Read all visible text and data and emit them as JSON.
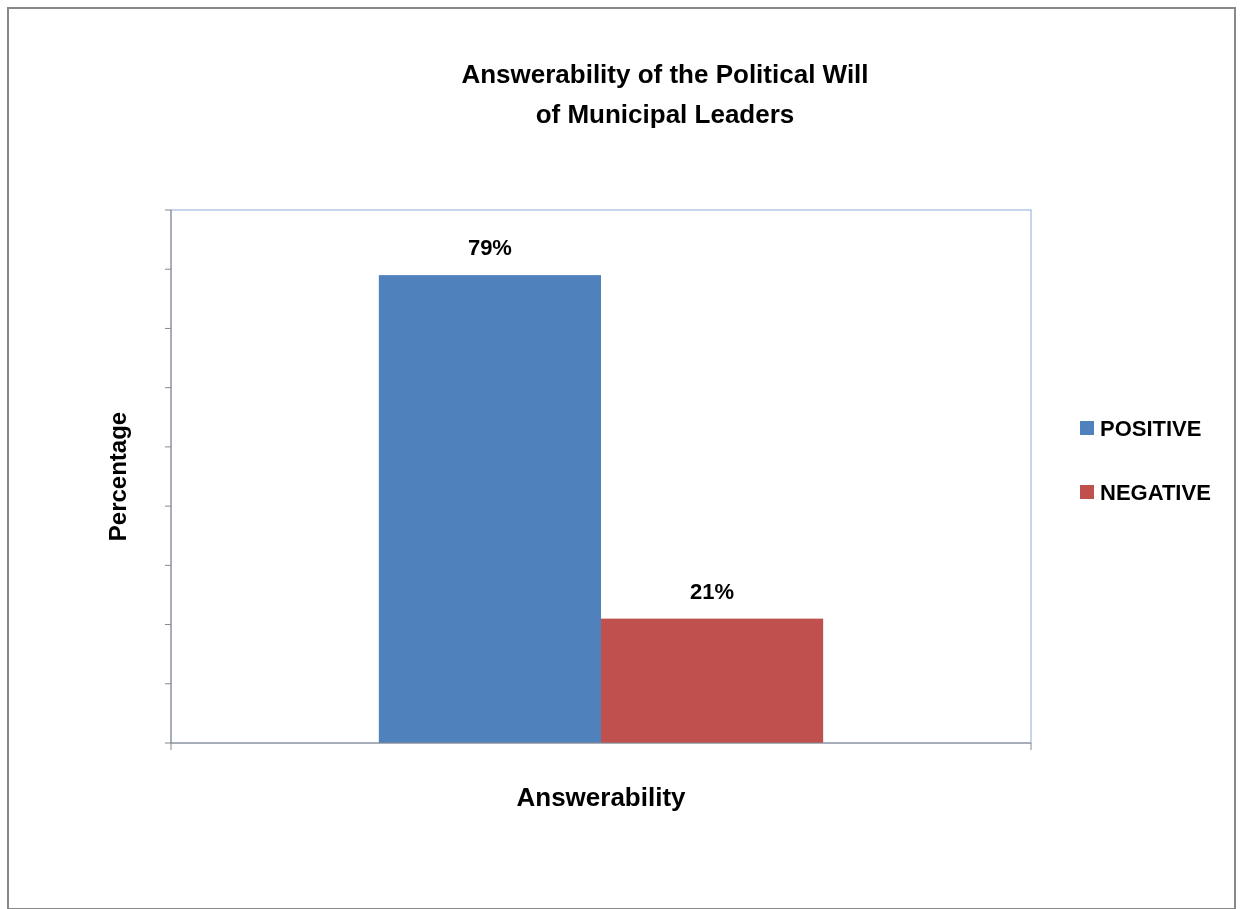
{
  "chart_data": {
    "type": "bar",
    "title": "Answerability of the Political Will\nof Municipal Leaders",
    "xlabel": "Answerability",
    "ylabel": "Percentage",
    "categories": [
      null
    ],
    "series": [
      {
        "name": "POSITIVE",
        "color": "#4f81bd",
        "values": [
          79
        ],
        "value_labels": [
          "79%"
        ]
      },
      {
        "name": "NEGATIVE",
        "color": "#c0504d",
        "values": [
          21
        ],
        "value_labels": [
          "21%"
        ]
      }
    ],
    "ylim": [
      0,
      90
    ],
    "yticks": [
      {
        "value": 0,
        "label": null
      },
      {
        "value": 10,
        "label": null
      },
      {
        "value": 20,
        "label": null
      },
      {
        "value": 30,
        "label": null
      },
      {
        "value": 40,
        "label": null
      },
      {
        "value": 50,
        "label": null
      },
      {
        "value": 60,
        "label": null
      },
      {
        "value": 70,
        "label": null
      },
      {
        "value": 80,
        "label": null
      },
      {
        "value": 90,
        "label": null
      }
    ],
    "legend": "right",
    "grid": false
  }
}
